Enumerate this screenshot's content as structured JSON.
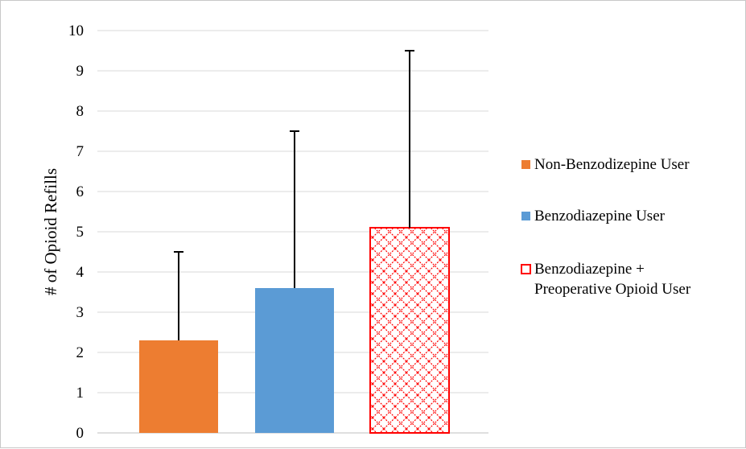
{
  "chart_data": {
    "type": "bar",
    "title": "",
    "xlabel": "",
    "ylabel": "# of Opioid Refills",
    "ylim": [
      0,
      10
    ],
    "yticks": [
      "0",
      "1",
      "2",
      "3",
      "4",
      "5",
      "6",
      "7",
      "8",
      "9",
      "10"
    ],
    "grid": true,
    "legend_position": "right",
    "series": [
      {
        "name": "Non-Benzodizepine User",
        "value": 2.3,
        "error_upper": 4.5,
        "color": "#ED7D31",
        "pattern": "solid"
      },
      {
        "name": "Benzodiazepine User",
        "value": 3.6,
        "error_upper": 7.5,
        "color": "#5B9BD5",
        "pattern": "solid"
      },
      {
        "name": "Benzodiazepine +",
        "name_line2": "Preoperative Opioid User",
        "value": 5.1,
        "error_upper": 9.5,
        "color": "#FF0000",
        "pattern": "crosshatch"
      }
    ]
  }
}
